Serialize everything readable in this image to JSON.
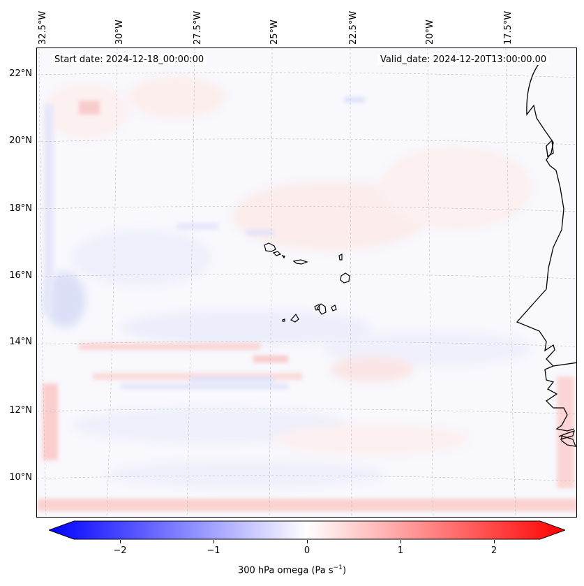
{
  "map": {
    "start_date": "Start date: 2024-12-18_00:00:00",
    "valid_date": "Valid_date: 2024-12-20T13:00:00.00",
    "lon_labels": [
      "32.5°W",
      "30°W",
      "27.5°W",
      "25°W",
      "22.5°W",
      "20°W",
      "17.5°W"
    ],
    "lat_labels": [
      "22°N",
      "20°N",
      "18°N",
      "16°N",
      "14°N",
      "12°N",
      "10°N"
    ],
    "field": "300 hPa omega",
    "region": "Cabo Verde / West Africa coast"
  },
  "colorbar": {
    "ticks": [
      "−2",
      "−1",
      "0",
      "1",
      "2"
    ],
    "tick_values": [
      -2,
      -1,
      0,
      1,
      2
    ],
    "range": [
      -2.7,
      2.7
    ],
    "label": "300 hPa omega (Pa s",
    "label_sup": "−1",
    "label_end": ")",
    "colors": {
      "min": "#0000ff",
      "mid": "#ffffff",
      "max": "#ff0000"
    }
  }
}
